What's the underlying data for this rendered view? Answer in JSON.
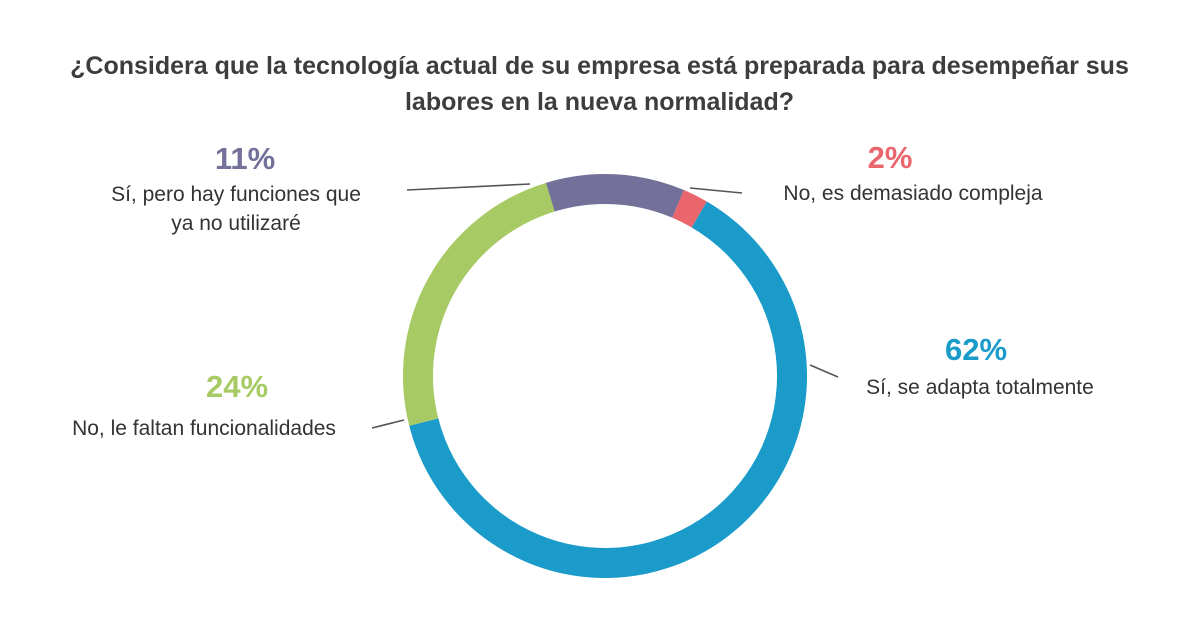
{
  "chart_data": {
    "type": "pie",
    "donut": true,
    "title_lines": [
      "¿Considera que la tecnología actual de su empresa está preparada para desempeñar sus",
      "labores en la nueva normalidad?"
    ],
    "slices": [
      {
        "name": "no_compleja",
        "pct_label": "2%",
        "value": 2,
        "label_lines": [
          "No, es demasiado compleja"
        ],
        "color": "#e8666c"
      },
      {
        "name": "si_adapta",
        "pct_label": "62%",
        "value": 62,
        "label_lines": [
          "Sí, se adapta totalmente"
        ],
        "color": "#1b9bca"
      },
      {
        "name": "no_faltan",
        "pct_label": "24%",
        "value": 24,
        "label_lines": [
          "No, le faltan funcionalidades"
        ],
        "color": "#a8ca64"
      },
      {
        "name": "si_funciones",
        "pct_label": "11%",
        "value": 11,
        "label_lines": [
          "Sí, pero hay funciones que",
          "ya no utilizaré"
        ],
        "color": "#737199"
      }
    ]
  }
}
